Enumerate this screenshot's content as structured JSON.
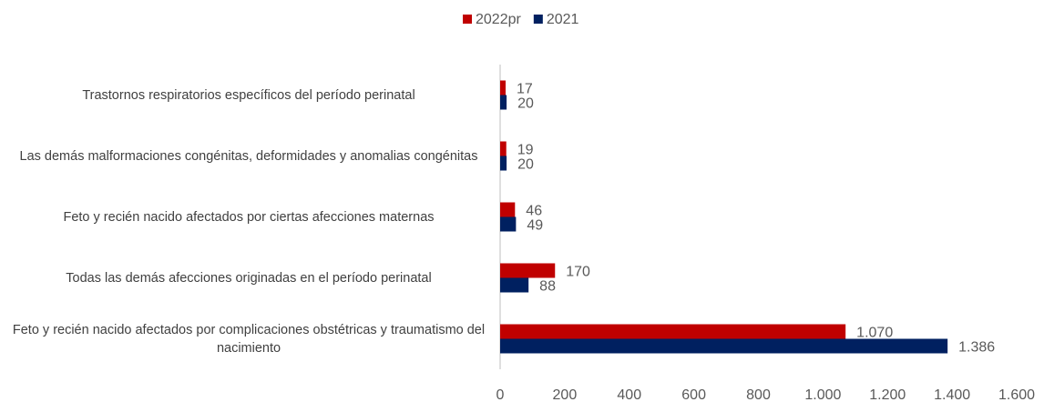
{
  "chart_data": {
    "type": "bar",
    "orientation": "horizontal",
    "categories": [
      "Trastornos respiratorios específicos del período perinatal",
      "Las demás malformaciones congénitas, deformidades y anomalias congénitas",
      "Feto y recién nacido afectados por ciertas afecciones maternas",
      "Todas las demás afecciones originadas en el período perinatal",
      "Feto y recién nacido afectados por complicaciones obstétricas y traumatismo del nacimiento"
    ],
    "series": [
      {
        "name": "2022pr",
        "color": "#c00000",
        "values": [
          17,
          19,
          46,
          170,
          1070
        ],
        "value_labels": [
          "17",
          "19",
          "46",
          "170",
          "1.070"
        ]
      },
      {
        "name": "2021",
        "color": "#002060",
        "values": [
          20,
          20,
          49,
          88,
          1386
        ],
        "value_labels": [
          "20",
          "20",
          "49",
          "88",
          "1.386"
        ]
      }
    ],
    "xlim": [
      0,
      1600
    ],
    "xticks": [
      0,
      200,
      400,
      600,
      800,
      {
        "value": 1000,
        "label": "1.000"
      },
      {
        "value": 1200,
        "label": "1.200"
      },
      {
        "value": 1400,
        "label": "1.400"
      },
      {
        "value": 1600,
        "label": "1.600"
      }
    ],
    "legend": "top"
  }
}
